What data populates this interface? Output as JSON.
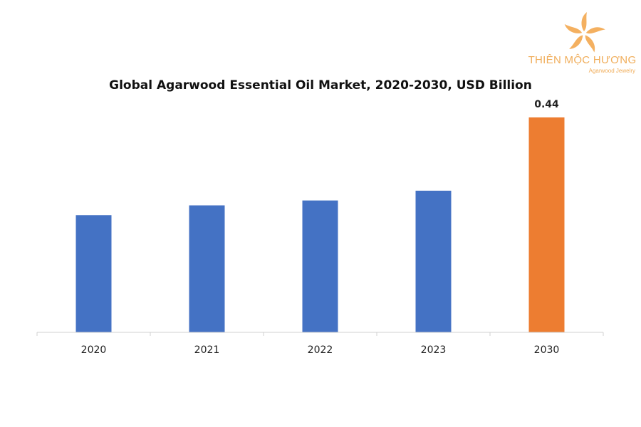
{
  "logo": {
    "brand": "THIÊN MỘC HƯƠNG",
    "tagline": "Agarwood Jewelry",
    "color": "#f0ad5a"
  },
  "chart_data": {
    "type": "bar",
    "title": "Global Agarwood Essential Oil Market, 2020-2030, USD Billion",
    "categories": [
      "2020",
      "2021",
      "2022",
      "2023",
      "2030"
    ],
    "values": [
      0.24,
      0.26,
      0.27,
      0.29,
      0.44
    ],
    "data_labels": {
      "2030": "0.44"
    },
    "colors": [
      "#4472c4",
      "#4472c4",
      "#4472c4",
      "#4472c4",
      "#ed7d31"
    ],
    "xlabel": "",
    "ylabel": "",
    "ylim": [
      0,
      0.44
    ],
    "grid": false,
    "legend": "none"
  }
}
